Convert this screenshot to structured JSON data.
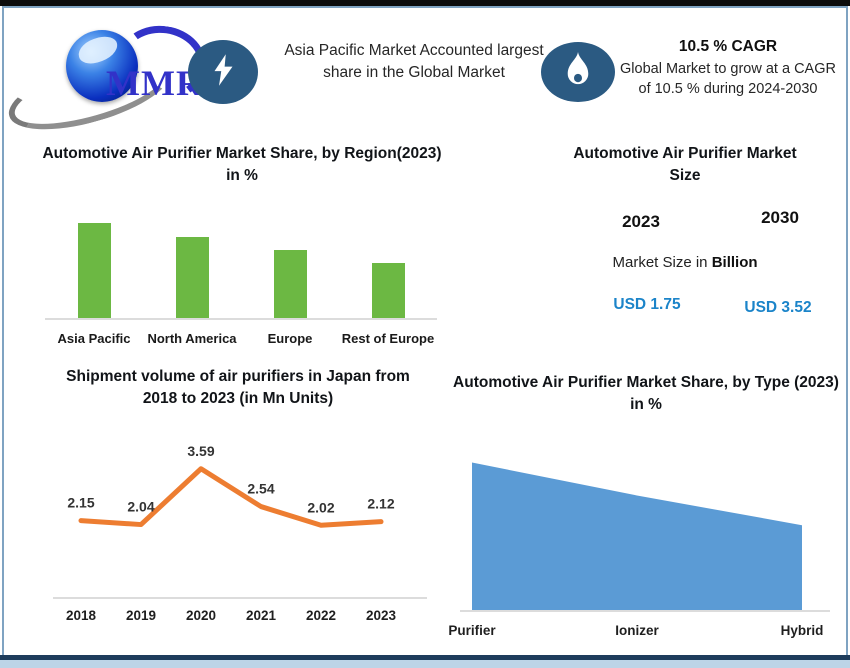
{
  "theme": {
    "icon_badge": "#2B5A82",
    "logo_blue": "#3232C8",
    "frame_navy": "#1E3C5C",
    "frame_light_blue": "#BDD4E7"
  },
  "brand": {
    "logo_text": "MMR"
  },
  "header": {
    "highlight": "Asia Pacific Market Accounted largest share in the Global Market",
    "cagr_title": "10.5 % CAGR",
    "cagr_text": "Global Market to grow at a CAGR of 10.5 % during 2024-2030"
  },
  "market_size": {
    "title": "Automotive Air Purifier Market Size",
    "year_left": "2023",
    "year_right": "2030",
    "label_prefix": "Market Size in ",
    "label_bold": "Billion",
    "value_left": "USD 1.75",
    "value_right": "USD 3.52",
    "value_color": "#1B84C9"
  },
  "chart_data": [
    {
      "id": "region-share-bar",
      "type": "bar",
      "title": "Automotive Air Purifier Market Share, by Region(2023) in %",
      "categories": [
        "Asia Pacific",
        "North America",
        "Europe",
        "Rest of Europe"
      ],
      "values": [
        45,
        38,
        32,
        26
      ],
      "ylim": [
        0,
        50
      ],
      "grid": false,
      "bar_color": "#6CB843"
    },
    {
      "id": "japan-shipments-line",
      "type": "line",
      "title": "Shipment volume of air purifiers in Japan from 2018 to 2023 (in Mn Units)",
      "x": [
        "2018",
        "2019",
        "2020",
        "2021",
        "2022",
        "2023"
      ],
      "values": [
        2.15,
        2.04,
        3.59,
        2.54,
        2.02,
        2.12
      ],
      "ylim": [
        0,
        4
      ],
      "grid": false,
      "line_color": "#ED7D31"
    },
    {
      "id": "type-share-area",
      "type": "area",
      "title": "Automotive Air Purifier Market Share, by Type (2023) in %",
      "categories": [
        "Purifier",
        "Ionizer",
        "Hybrid"
      ],
      "values": [
        45,
        35,
        26
      ],
      "ylim": [
        0,
        50
      ],
      "grid": false,
      "area_color": "#5B9BD5"
    }
  ]
}
